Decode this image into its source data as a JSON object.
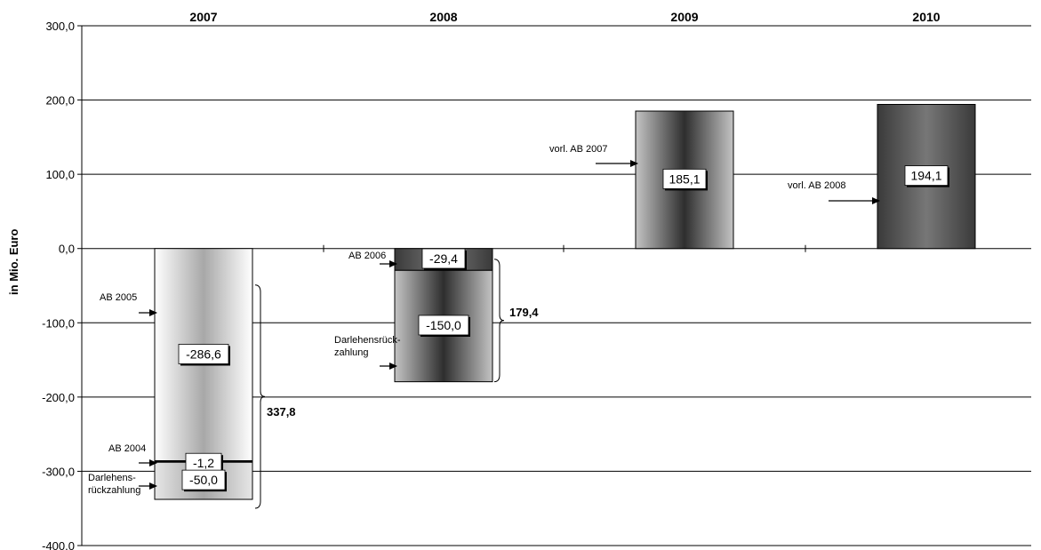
{
  "chart_data": {
    "type": "bar",
    "ylabel": "in Mio. Euro",
    "ylim": [
      -400,
      300
    ],
    "yticks": [
      300,
      200,
      100,
      0,
      -100,
      -200,
      -300,
      -400
    ],
    "ytick_labels": [
      "300,0",
      "200,0",
      "100,0",
      "0,0",
      "-100,0",
      "-200,0",
      "-300,0",
      "-400,0"
    ],
    "grid": true,
    "categories": [
      "2007",
      "2008",
      "2009",
      "2010"
    ],
    "stacks": [
      {
        "category": "2007",
        "segments": [
          {
            "value": -286.6,
            "label": "-286,6",
            "annotation": "AB 2005",
            "style": "light"
          },
          {
            "value": -1.2,
            "label": "-1,2",
            "annotation": "AB 2004",
            "style": "light"
          },
          {
            "value": -50.0,
            "label": "-50,0",
            "annotation": "Darlehens-\nrückzahlung",
            "style": "grey"
          }
        ],
        "total_label": "337,8"
      },
      {
        "category": "2008",
        "segments": [
          {
            "value": -29.4,
            "label": "-29,4",
            "annotation": "AB 2006",
            "style": "dark"
          },
          {
            "value": -150.0,
            "label": "-150,0",
            "annotation": "Darlehensrück-\nzahlung",
            "style": "mid"
          }
        ],
        "total_label": "179,4"
      },
      {
        "category": "2009",
        "segments": [
          {
            "value": 185.1,
            "label": "185,1",
            "annotation": "vorl. AB 2007",
            "style": "mid"
          }
        ]
      },
      {
        "category": "2010",
        "segments": [
          {
            "value": 194.1,
            "label": "194,1",
            "annotation": "vorl. AB 2008",
            "style": "dark"
          }
        ]
      }
    ]
  }
}
